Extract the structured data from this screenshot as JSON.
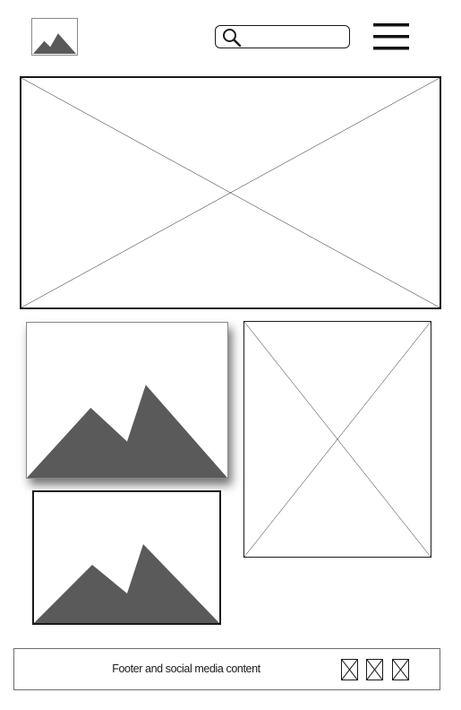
{
  "header": {
    "logo_icon": "image-placeholder-icon",
    "search": {
      "icon": "magnifier-icon",
      "value": "",
      "placeholder": ""
    },
    "menu_icon": "hamburger-menu-icon"
  },
  "content": {
    "hero_placeholder": "x-placeholder",
    "image_card_1_icon": "image-placeholder-icon",
    "image_card_2_icon": "image-placeholder-icon",
    "side_placeholder": "x-placeholder"
  },
  "footer": {
    "text": "Footer and social media content",
    "social_icons": [
      "x-placeholder-icon",
      "x-placeholder-icon",
      "x-placeholder-icon"
    ]
  },
  "colors": {
    "stroke": "#1a1a1a",
    "mountain_fill": "#5a5a5a",
    "background": "#ffffff"
  }
}
